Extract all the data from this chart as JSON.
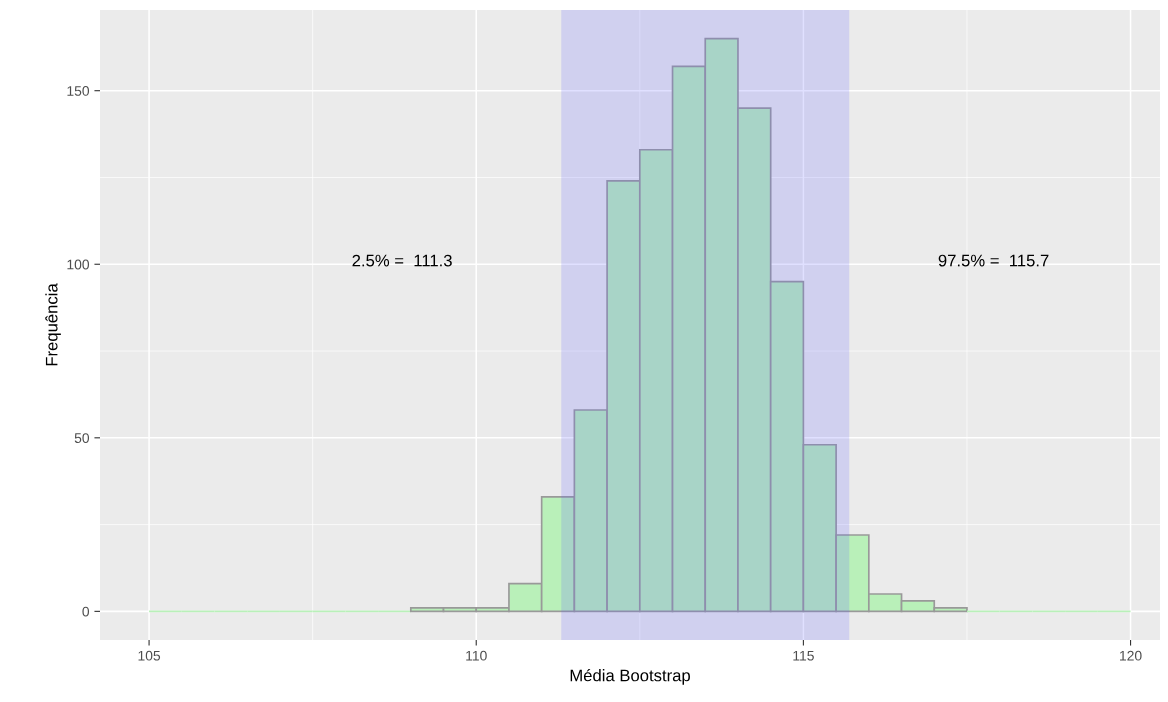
{
  "chart_data": {
    "type": "histogram",
    "xlabel": "Média Bootstrap",
    "ylabel": "Frequência",
    "bins": [
      105,
      105.5,
      106,
      106.5,
      107,
      107.5,
      108,
      108.5,
      109,
      109.5,
      110,
      110.5,
      111,
      111.5,
      112,
      112.5,
      113,
      113.5,
      114,
      114.5,
      115,
      115.5,
      116,
      116.5,
      117,
      117.5,
      118,
      118.5,
      119,
      119.5,
      120
    ],
    "values": [
      0,
      0,
      0,
      0,
      0,
      0,
      0,
      0,
      1,
      1,
      1,
      8,
      33,
      58,
      124,
      133,
      157,
      165,
      145,
      95,
      48,
      22,
      5,
      3,
      1,
      0,
      0,
      0,
      0,
      0
    ],
    "color": "#b9f0b9",
    "xlim": [
      104.25,
      120.45
    ],
    "ylim": [
      -8.25,
      173.25
    ],
    "xticks": [
      105,
      110,
      115,
      120
    ],
    "yticks": [
      0,
      50,
      100,
      150
    ],
    "grid": true,
    "bands": [
      {
        "axis": "x",
        "from": 111.3,
        "to": 115.7,
        "color": "#6666ff"
      }
    ],
    "annotations": [
      "2.5% =  111.3",
      "97.5% =  115.7"
    ]
  }
}
